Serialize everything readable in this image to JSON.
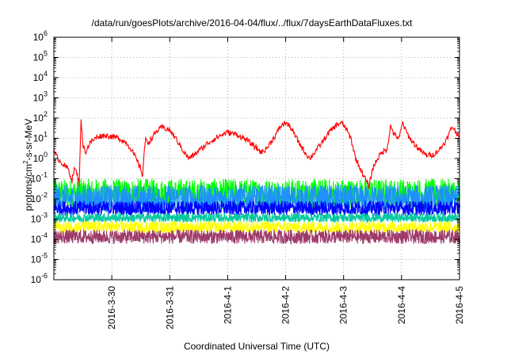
{
  "chart_data": {
    "type": "line",
    "title": "/data/run/goesPlots/archive/2016-04-04/flux/../flux/7daysEarthDataFluxes.txt",
    "xlabel": "Coordinated Universal Time (UTC)",
    "ylabel_main": "protons/cm",
    "ylabel_sup": "2",
    "ylabel_rest": "-s-sr-MeV",
    "yscale": "log",
    "ylim": [
      1e-06,
      1000000.0
    ],
    "y_ticks": [
      {
        "base": "10",
        "exp": "-6"
      },
      {
        "base": "10",
        "exp": "-5"
      },
      {
        "base": "10",
        "exp": "-4"
      },
      {
        "base": "10",
        "exp": "-3"
      },
      {
        "base": "10",
        "exp": "-2"
      },
      {
        "base": "10",
        "exp": "-1"
      },
      {
        "base": "10",
        "exp": "0"
      },
      {
        "base": "10",
        "exp": "1"
      },
      {
        "base": "10",
        "exp": "2"
      },
      {
        "base": "10",
        "exp": "3"
      },
      {
        "base": "10",
        "exp": "4"
      },
      {
        "base": "10",
        "exp": "5"
      },
      {
        "base": "10",
        "exp": "6"
      }
    ],
    "xlim": [
      "2016-03-29",
      "2016-04-05"
    ],
    "x_ticks": [
      "2016-3-30",
      "2016-3-31",
      "2016-4-1",
      "2016-4-2",
      "2016-4-3",
      "2016-4-4",
      "2016-4-5"
    ],
    "grid": true,
    "series": [
      {
        "color": "#ff0000",
        "points": [
          [
            "2016-03-29T00:00",
            2.0
          ],
          [
            "2016-03-29T02:00",
            0.9
          ],
          [
            "2016-03-29T04:00",
            0.5
          ],
          [
            "2016-03-29T06:00",
            0.3
          ],
          [
            "2016-03-29T07:30",
            0.08
          ],
          [
            "2016-03-29T08:30",
            0.3
          ],
          [
            "2016-03-29T09:30",
            0.2
          ],
          [
            "2016-03-29T10:30",
            0.06
          ],
          [
            "2016-03-29T11:15",
            100
          ],
          [
            "2016-03-29T12:00",
            5
          ],
          [
            "2016-03-29T13:00",
            2
          ],
          [
            "2016-03-29T15:00",
            6
          ],
          [
            "2016-03-29T18:00",
            12
          ],
          [
            "2016-03-29T21:00",
            14
          ],
          [
            "2016-03-30T00:00",
            12
          ],
          [
            "2016-03-30T03:00",
            10
          ],
          [
            "2016-03-30T06:00",
            6
          ],
          [
            "2016-03-30T08:00",
            3
          ],
          [
            "2016-03-30T10:00",
            1
          ],
          [
            "2016-03-30T12:00",
            0.3
          ],
          [
            "2016-03-30T12:45",
            0.15
          ],
          [
            "2016-03-30T13:30",
            3
          ],
          [
            "2016-03-30T14:00",
            8
          ],
          [
            "2016-03-30T15:00",
            6
          ],
          [
            "2016-03-30T17:00",
            12
          ],
          [
            "2016-03-30T19:00",
            25
          ],
          [
            "2016-03-30T21:00",
            35
          ],
          [
            "2016-03-31T00:00",
            25
          ],
          [
            "2016-03-31T03:00",
            8
          ],
          [
            "2016-03-31T06:00",
            2
          ],
          [
            "2016-03-31T08:00",
            1
          ],
          [
            "2016-03-31T10:00",
            1.5
          ],
          [
            "2016-03-31T13:00",
            3
          ],
          [
            "2016-03-31T16:00",
            6
          ],
          [
            "2016-03-31T20:00",
            12
          ],
          [
            "2016-04-01T00:00",
            20
          ],
          [
            "2016-04-01T04:00",
            15
          ],
          [
            "2016-04-01T08:00",
            8
          ],
          [
            "2016-04-01T11:00",
            4
          ],
          [
            "2016-04-01T14:00",
            2
          ],
          [
            "2016-04-01T16:00",
            3
          ],
          [
            "2016-04-01T19:00",
            10
          ],
          [
            "2016-04-01T22:00",
            40
          ],
          [
            "2016-04-02T00:00",
            60
          ],
          [
            "2016-04-02T02:00",
            35
          ],
          [
            "2016-04-02T05:00",
            8
          ],
          [
            "2016-04-02T08:00",
            2
          ],
          [
            "2016-04-02T10:00",
            1
          ],
          [
            "2016-04-02T12:00",
            2
          ],
          [
            "2016-04-02T15:00",
            6
          ],
          [
            "2016-04-02T18:00",
            20
          ],
          [
            "2016-04-02T21:00",
            45
          ],
          [
            "2016-04-02T23:00",
            60
          ],
          [
            "2016-04-03T01:00",
            30
          ],
          [
            "2016-04-03T03:00",
            10
          ],
          [
            "2016-04-03T05:00",
            1
          ],
          [
            "2016-04-03T07:00",
            0.3
          ],
          [
            "2016-04-03T09:00",
            0.1
          ],
          [
            "2016-04-03T10:30",
            0.04
          ],
          [
            "2016-04-03T12:00",
            0.3
          ],
          [
            "2016-04-03T14:00",
            1
          ],
          [
            "2016-04-03T16:00",
            2
          ],
          [
            "2016-04-03T18:00",
            3
          ],
          [
            "2016-04-03T19:30",
            40
          ],
          [
            "2016-04-03T21:00",
            15
          ],
          [
            "2016-04-03T23:00",
            10
          ],
          [
            "2016-04-04T00:30",
            60
          ],
          [
            "2016-04-04T02:00",
            20
          ],
          [
            "2016-04-04T04:00",
            8
          ],
          [
            "2016-04-04T07:00",
            3
          ],
          [
            "2016-04-04T10:00",
            1.5
          ],
          [
            "2016-04-04T13:00",
            1.5
          ],
          [
            "2016-04-04T16:00",
            3
          ],
          [
            "2016-04-04T19:00",
            10
          ],
          [
            "2016-04-04T21:00",
            40
          ],
          [
            "2016-04-04T22:30",
            20
          ],
          [
            "2016-04-05T00:00",
            15
          ]
        ]
      },
      {
        "color": "#00ff00",
        "band": [
          0.003,
          0.1
        ]
      },
      {
        "color": "#1e90ff",
        "band": [
          0.002,
          0.05
        ]
      },
      {
        "color": "#0000ff",
        "band": [
          0.0015,
          0.008
        ]
      },
      {
        "color": "#00c8a0",
        "band": [
          0.0007,
          0.002
        ]
      },
      {
        "color": "#ffff00",
        "band": [
          0.0002,
          0.0008
        ]
      },
      {
        "color": "#9e3a6a",
        "band": [
          6e-05,
          0.0003
        ]
      }
    ]
  }
}
